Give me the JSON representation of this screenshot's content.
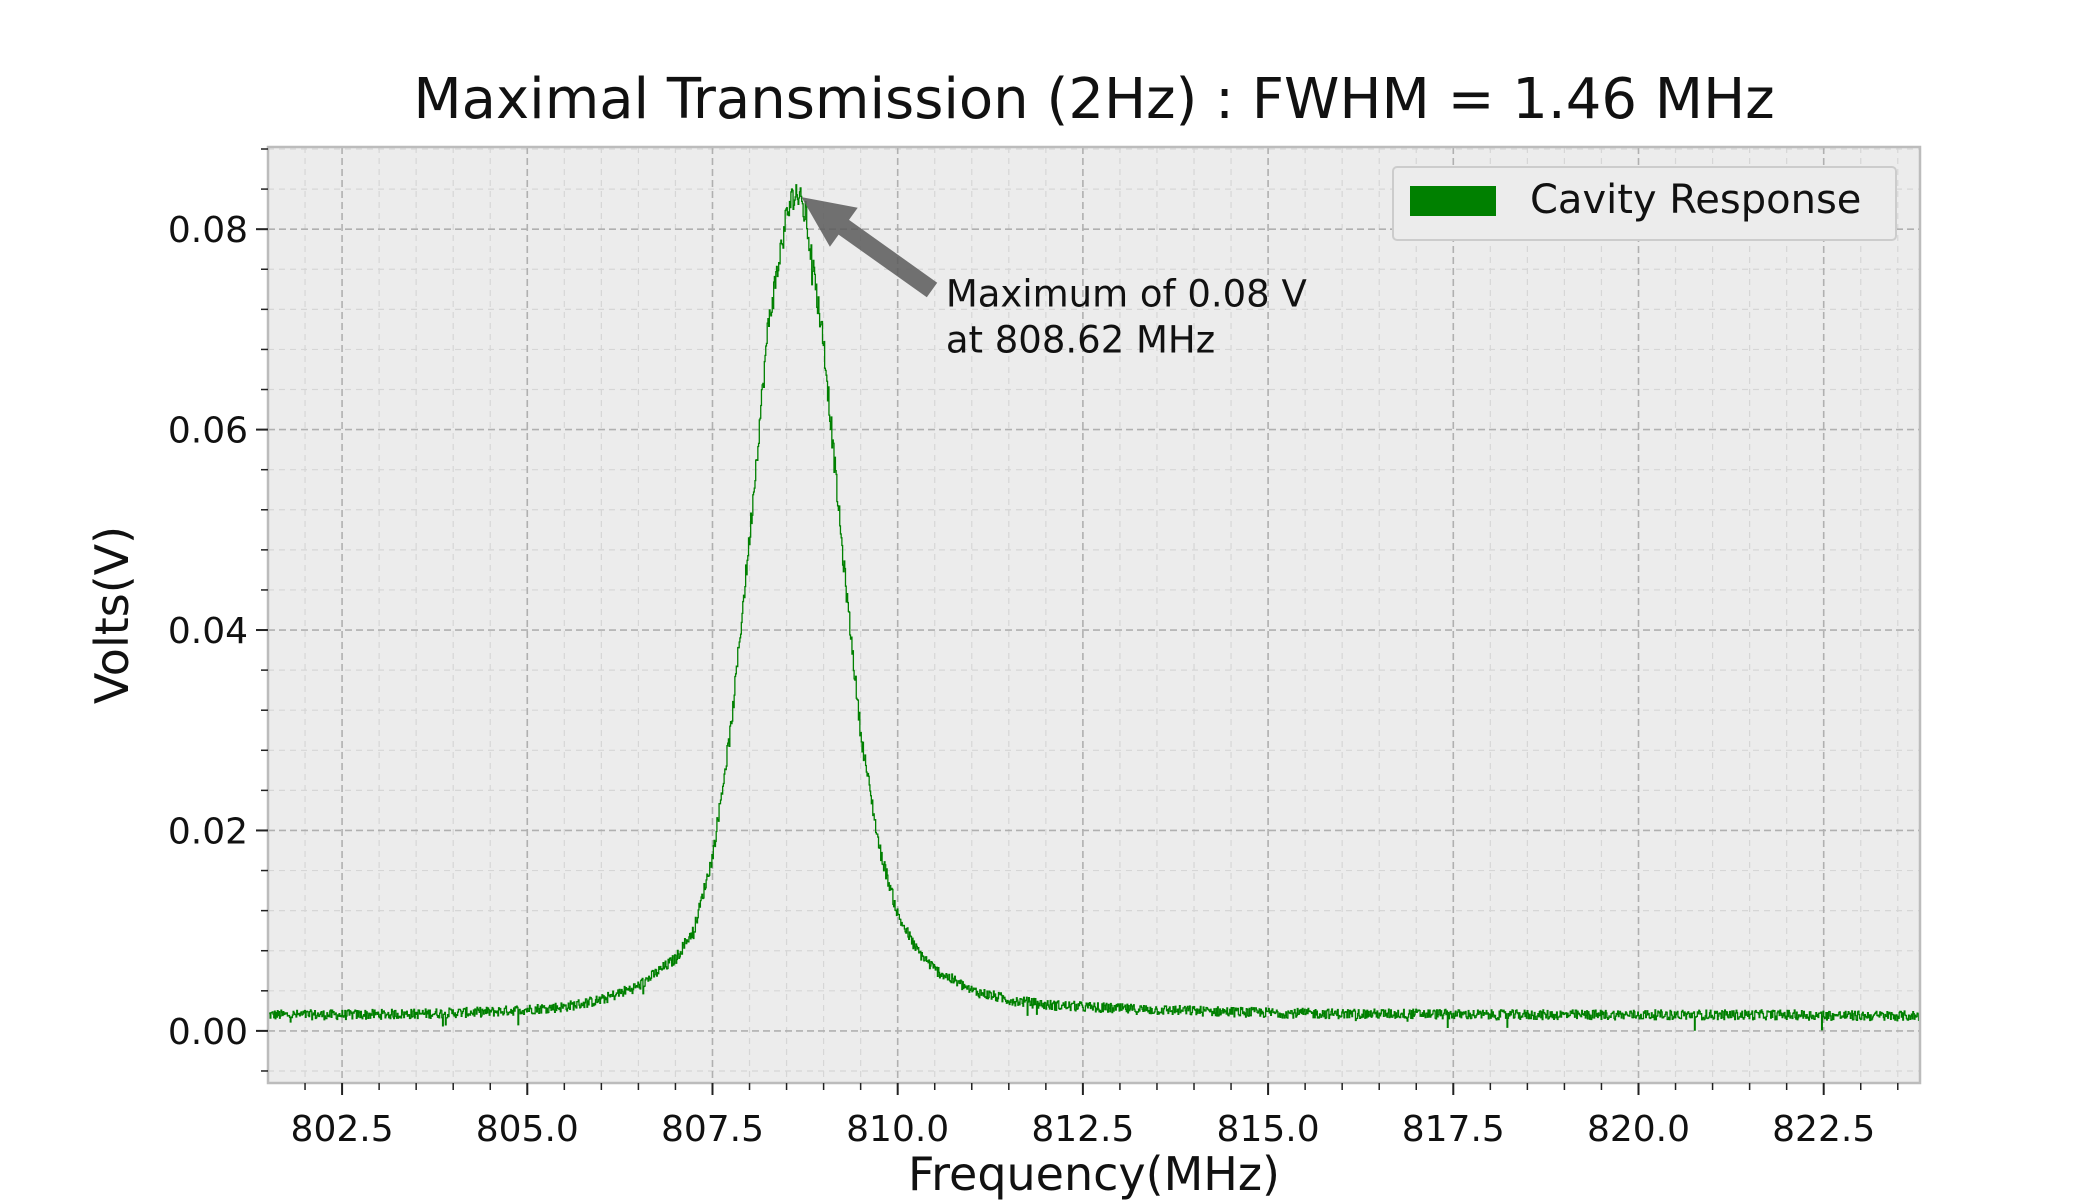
{
  "chart_data": {
    "type": "line",
    "title": "Maximal Transmission (2Hz) : FWHM = 1.46 MHz",
    "xlabel": "Frequency(MHz)",
    "ylabel": "Volts(V)",
    "xlim": [
      801.5,
      823.8
    ],
    "ylim": [
      -0.0052,
      0.0882
    ],
    "x_major_ticks": [
      802.5,
      805.0,
      807.5,
      810.0,
      812.5,
      815.0,
      817.5,
      820.0,
      822.5
    ],
    "x_tick_labels": [
      "802.5",
      "805.0",
      "807.5",
      "810.0",
      "812.5",
      "815.0",
      "817.5",
      "820.0",
      "822.5"
    ],
    "y_major_ticks": [
      0.0,
      0.02,
      0.04,
      0.06,
      0.08
    ],
    "y_tick_labels": [
      "0.00",
      "0.02",
      "0.04",
      "0.06",
      "0.08"
    ],
    "grid": true,
    "minor_grid": true,
    "legend_position": "top-right",
    "series": [
      {
        "name": "Cavity Response",
        "color": "#008000",
        "x": [
          801.5,
          802.5,
          803.5,
          804.5,
          805.5,
          806.0,
          806.5,
          807.0,
          807.25,
          807.5,
          807.75,
          808.0,
          808.25,
          808.5,
          808.62,
          808.75,
          809.0,
          809.25,
          809.5,
          809.75,
          810.0,
          810.25,
          810.5,
          811.0,
          811.5,
          812.0,
          813.0,
          814.0,
          815.0,
          816.0,
          817.0,
          818.0,
          819.0,
          820.0,
          821.0,
          822.0,
          823.0,
          823.8
        ],
        "y": [
          0.0016,
          0.0016,
          0.0017,
          0.0019,
          0.0024,
          0.0031,
          0.0045,
          0.0072,
          0.0102,
          0.0175,
          0.0305,
          0.0495,
          0.0705,
          0.0815,
          0.0838,
          0.0815,
          0.0685,
          0.0478,
          0.0295,
          0.0182,
          0.0115,
          0.0081,
          0.0061,
          0.004,
          0.0031,
          0.0026,
          0.0022,
          0.002,
          0.0018,
          0.0017,
          0.0017,
          0.0016,
          0.0016,
          0.0016,
          0.0016,
          0.0016,
          0.0015,
          0.0015
        ]
      }
    ],
    "annotation": {
      "text_line1": "Maximum of 0.08 V",
      "text_line2": "at 808.62 MHz",
      "point": [
        808.62,
        0.0838
      ],
      "text_anchor": [
        810.65,
        0.0723
      ]
    },
    "colors": {
      "plot_background": "#ececec",
      "grid": "#b0b0b0",
      "spine": "#bcbcbc",
      "arrow": "#5a5a5a"
    }
  }
}
